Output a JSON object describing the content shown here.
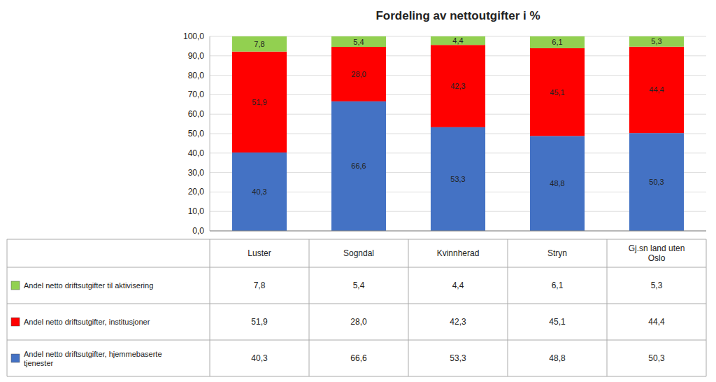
{
  "chart_data": {
    "type": "bar",
    "stacked": true,
    "data_labels": true,
    "grid": true,
    "tick_labels": "y",
    "title": "Fordeling av nettoutgifter i %",
    "categories": [
      "Luster",
      "Sogndal",
      "Kvinnherad",
      "Stryn",
      "Gj.sn land uten\nOslo"
    ],
    "series": [
      {
        "name": "Andel netto driftsutgifter til aktivisering",
        "color": "#92D050",
        "values": [
          7.8,
          5.4,
          4.4,
          6.1,
          5.3
        ],
        "value_labels": [
          "7,8",
          "5,4",
          "4,4",
          "6,1",
          "5,3"
        ]
      },
      {
        "name": "Andel netto driftsutgifter, institusjoner",
        "color": "#FF0000",
        "values": [
          51.9,
          28.0,
          42.3,
          45.1,
          44.4
        ],
        "value_labels": [
          "51,9",
          "28,0",
          "42,3",
          "45,1",
          "44,4"
        ]
      },
      {
        "name": "Andel netto driftsutgifter, hjemmebaserte\ntjenester",
        "color": "#4472C4",
        "values": [
          40.3,
          66.6,
          53.3,
          48.8,
          50.3
        ],
        "value_labels": [
          "40,3",
          "66,6",
          "53,3",
          "48,8",
          "50,3"
        ]
      }
    ],
    "ylim": [
      0,
      100
    ],
    "yticks": [
      {
        "value": 0,
        "label": "0,0"
      },
      {
        "value": 10,
        "label": "10,0"
      },
      {
        "value": 20,
        "label": "20,0"
      },
      {
        "value": 30,
        "label": "30,0"
      },
      {
        "value": 40,
        "label": "40,0"
      },
      {
        "value": 50,
        "label": "50,0"
      },
      {
        "value": 60,
        "label": "60,0"
      },
      {
        "value": 70,
        "label": "70,0"
      },
      {
        "value": 80,
        "label": "80,0"
      },
      {
        "value": 90,
        "label": "90,0"
      },
      {
        "value": 100,
        "label": "100,0"
      }
    ]
  }
}
